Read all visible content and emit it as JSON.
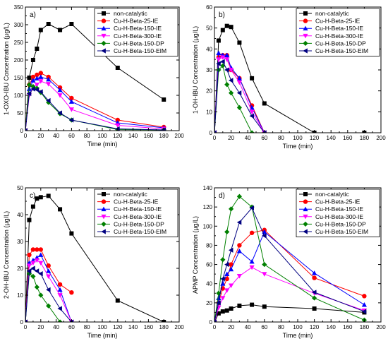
{
  "chart_data": [
    {
      "type": "line",
      "panel": "a)",
      "xlabel": "Time (min)",
      "ylabel": "1-OXO-IBU Concentration (µg/L)",
      "xlim": [
        0,
        200
      ],
      "ylim": [
        0,
        350
      ],
      "xticks": [
        0,
        20,
        40,
        60,
        80,
        100,
        120,
        140,
        160,
        180,
        200
      ],
      "yticks": [
        0,
        50,
        100,
        150,
        200,
        250,
        300,
        350
      ],
      "legend_position": "top-right",
      "series": [
        {
          "name": "non-catalytic",
          "color": "#000000",
          "marker": "square",
          "x": [
            0,
            5,
            10,
            15,
            20,
            30,
            45,
            60,
            120,
            180
          ],
          "y": [
            0,
            150,
            200,
            232,
            285,
            302,
            285,
            302,
            178,
            88
          ]
        },
        {
          "name": "Cu-H-Beta-25-IE",
          "color": "#ff0000",
          "marker": "circle",
          "x": [
            0,
            5,
            10,
            15,
            20,
            30,
            45,
            60,
            120,
            180
          ],
          "y": [
            0,
            130,
            152,
            158,
            163,
            152,
            122,
            92,
            30,
            10
          ]
        },
        {
          "name": "Cu-H-Beta-150-IE",
          "color": "#0000ff",
          "marker": "triangle-up",
          "x": [
            0,
            5,
            10,
            15,
            20,
            30,
            45,
            60,
            120,
            180
          ],
          "y": [
            0,
            118,
            142,
            148,
            152,
            145,
            115,
            82,
            22,
            8
          ]
        },
        {
          "name": "Cu-H-Beta-300-IE",
          "color": "#ff00ff",
          "marker": "triangle-down",
          "x": [
            0,
            5,
            10,
            15,
            20,
            30,
            45,
            60,
            120,
            180
          ],
          "y": [
            0,
            100,
            122,
            130,
            140,
            132,
            100,
            60,
            15,
            5
          ]
        },
        {
          "name": "Cu-H-Beta-150-DP",
          "color": "#008000",
          "marker": "diamond",
          "x": [
            0,
            5,
            10,
            15,
            20,
            30,
            45,
            60,
            120,
            180
          ],
          "y": [
            0,
            130,
            125,
            120,
            108,
            80,
            48,
            30,
            3,
            2
          ]
        },
        {
          "name": "Cu-H-Beta-150-EIM",
          "color": "#000080",
          "marker": "triangle-left",
          "x": [
            0,
            5,
            10,
            15,
            20,
            30,
            45,
            60,
            120,
            180
          ],
          "y": [
            0,
            105,
            118,
            116,
            110,
            85,
            50,
            30,
            5,
            2
          ]
        }
      ]
    },
    {
      "type": "line",
      "panel": "b)",
      "xlabel": "Time (min)",
      "ylabel": "1-OH-IBU Concentration (µg/L)",
      "xlim": [
        0,
        200
      ],
      "ylim": [
        0,
        60
      ],
      "xticks": [
        0,
        20,
        40,
        60,
        80,
        100,
        120,
        140,
        160,
        180,
        200
      ],
      "yticks": [
        0,
        10,
        20,
        30,
        40,
        50,
        60
      ],
      "legend_position": "top-right",
      "series": [
        {
          "name": "non-catalytic",
          "color": "#000000",
          "marker": "square",
          "x": [
            0,
            5,
            10,
            15,
            20,
            30,
            45,
            60,
            120,
            180
          ],
          "y": [
            0,
            44,
            49,
            51,
            50.5,
            43,
            26,
            14,
            0,
            0
          ]
        },
        {
          "name": "Cu-H-Beta-25-IE",
          "color": "#ff0000",
          "marker": "circle",
          "x": [
            0,
            5,
            10,
            15,
            20,
            30,
            45,
            60
          ],
          "y": [
            0,
            36,
            37,
            37,
            30,
            26,
            13,
            0
          ]
        },
        {
          "name": "Cu-H-Beta-150-IE",
          "color": "#0000ff",
          "marker": "triangle-up",
          "x": [
            0,
            5,
            10,
            15,
            20,
            30,
            45,
            60
          ],
          "y": [
            0,
            38,
            37,
            37,
            31,
            26,
            12,
            0
          ]
        },
        {
          "name": "Cu-H-Beta-300-IE",
          "color": "#ff00ff",
          "marker": "triangle-down",
          "x": [
            0,
            5,
            10,
            15,
            20,
            30,
            45,
            60
          ],
          "y": [
            0,
            35,
            36,
            35,
            30,
            24,
            10,
            0
          ]
        },
        {
          "name": "Cu-H-Beta-150-DP",
          "color": "#008000",
          "marker": "diamond",
          "x": [
            0,
            5,
            10,
            15,
            20,
            30,
            45
          ],
          "y": [
            0,
            30,
            32,
            23,
            19,
            12,
            0
          ]
        },
        {
          "name": "Cu-H-Beta-150-EIM",
          "color": "#000080",
          "marker": "triangle-left",
          "x": [
            0,
            5,
            10,
            15,
            20,
            30,
            45,
            60
          ],
          "y": [
            0,
            33,
            34,
            30,
            25,
            19,
            8,
            0
          ]
        }
      ]
    },
    {
      "type": "line",
      "panel": "c)",
      "xlabel": "Time (min)",
      "ylabel": "2-OH-IBU Concentration (µg/L)",
      "xlim": [
        0,
        200
      ],
      "ylim": [
        0,
        50
      ],
      "xticks": [
        0,
        20,
        40,
        60,
        80,
        100,
        120,
        140,
        160,
        180,
        200
      ],
      "yticks": [
        0,
        10,
        20,
        30,
        40,
        50
      ],
      "legend_position": "top-right",
      "series": [
        {
          "name": "non-catalytic",
          "color": "#000000",
          "marker": "square",
          "x": [
            0,
            5,
            10,
            15,
            20,
            30,
            45,
            60,
            120,
            180
          ],
          "y": [
            0,
            38,
            43,
            46,
            46.5,
            47,
            42,
            33,
            8,
            0
          ]
        },
        {
          "name": "Cu-H-Beta-25-IE",
          "color": "#ff0000",
          "marker": "circle",
          "x": [
            0,
            5,
            10,
            15,
            20,
            30,
            45,
            60
          ],
          "y": [
            0,
            25,
            27,
            27,
            27,
            21,
            14,
            11
          ]
        },
        {
          "name": "Cu-H-Beta-150-IE",
          "color": "#0000ff",
          "marker": "triangle-up",
          "x": [
            0,
            5,
            10,
            15,
            20,
            30,
            45,
            60
          ],
          "y": [
            0,
            22,
            23,
            24,
            25,
            19,
            12,
            0
          ]
        },
        {
          "name": "Cu-H-Beta-300-IE",
          "color": "#ff00ff",
          "marker": "triangle-down",
          "x": [
            0,
            5,
            10,
            15,
            20,
            30,
            45,
            60
          ],
          "y": [
            0,
            21,
            22,
            23,
            22,
            17,
            10,
            0
          ]
        },
        {
          "name": "Cu-H-Beta-150-DP",
          "color": "#008000",
          "marker": "diamond",
          "x": [
            0,
            5,
            10,
            15,
            20,
            30,
            45
          ],
          "y": [
            0,
            18,
            17,
            13,
            10,
            6,
            0
          ]
        },
        {
          "name": "Cu-H-Beta-150-EIM",
          "color": "#000080",
          "marker": "triangle-left",
          "x": [
            0,
            5,
            10,
            15,
            20,
            30,
            45,
            60
          ],
          "y": [
            0,
            19,
            20,
            19,
            18,
            12,
            5,
            0
          ]
        }
      ]
    },
    {
      "type": "line",
      "panel": "d)",
      "xlabel": "Time (min)",
      "ylabel": "APMP Concentration (µg/L)",
      "xlim": [
        0,
        200
      ],
      "ylim": [
        0,
        140
      ],
      "xticks": [
        0,
        20,
        40,
        60,
        80,
        100,
        120,
        140,
        160,
        180,
        200
      ],
      "yticks": [
        0,
        20,
        40,
        60,
        80,
        100,
        120,
        140
      ],
      "legend_position": "top-right",
      "series": [
        {
          "name": "non-catalytic",
          "color": "#000000",
          "marker": "square",
          "x": [
            0,
            5,
            10,
            15,
            20,
            30,
            45,
            60,
            120,
            180
          ],
          "y": [
            0,
            9,
            11,
            12,
            14,
            17,
            18,
            16,
            14,
            10
          ]
        },
        {
          "name": "Cu-H-Beta-25-IE",
          "color": "#ff0000",
          "marker": "circle",
          "x": [
            0,
            5,
            10,
            15,
            20,
            30,
            45,
            60,
            120,
            180
          ],
          "y": [
            0,
            20,
            35,
            45,
            60,
            80,
            93,
            96,
            46,
            27
          ]
        },
        {
          "name": "Cu-H-Beta-150-IE",
          "color": "#0000ff",
          "marker": "triangle-up",
          "x": [
            0,
            5,
            10,
            15,
            20,
            30,
            45,
            60,
            120,
            180
          ],
          "y": [
            0,
            25,
            40,
            50,
            55,
            74,
            63,
            94,
            51,
            18
          ]
        },
        {
          "name": "Cu-H-Beta-300-IE",
          "color": "#ff00ff",
          "marker": "triangle-down",
          "x": [
            0,
            5,
            10,
            15,
            20,
            30,
            45,
            60,
            120,
            180
          ],
          "y": [
            0,
            15,
            25,
            33,
            38,
            48,
            57,
            50,
            30,
            12
          ]
        },
        {
          "name": "Cu-H-Beta-150-DP",
          "color": "#008000",
          "marker": "diamond",
          "x": [
            0,
            5,
            10,
            15,
            20,
            30,
            45,
            60,
            120,
            180
          ],
          "y": [
            0,
            30,
            65,
            94,
            118,
            131,
            120,
            60,
            25,
            2
          ]
        },
        {
          "name": "Cu-H-Beta-150-EIM",
          "color": "#000080",
          "marker": "triangle-left",
          "x": [
            0,
            5,
            10,
            15,
            20,
            30,
            45,
            60,
            120,
            180
          ],
          "y": [
            0,
            20,
            45,
            60,
            75,
            104,
            119,
            90,
            31,
            11
          ]
        }
      ]
    }
  ]
}
